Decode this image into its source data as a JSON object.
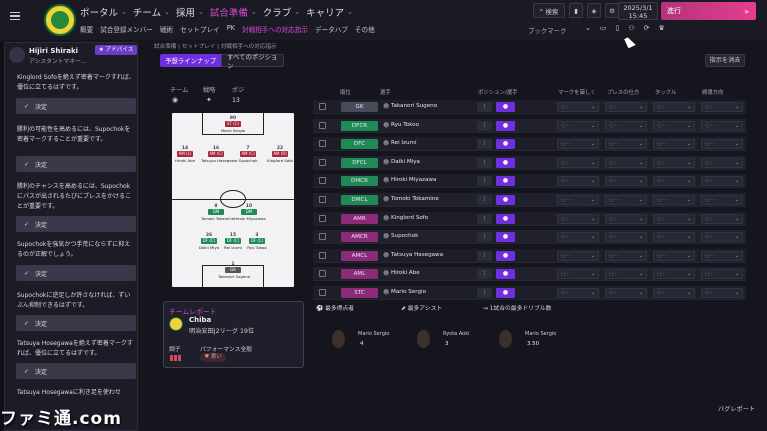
{
  "nav": {
    "main": [
      {
        "label": "ポータル"
      },
      {
        "label": "チーム"
      },
      {
        "label": "採用"
      },
      {
        "label": "試合準備"
      },
      {
        "label": "クラブ"
      },
      {
        "label": "キャリア"
      }
    ],
    "sub": [
      "概要",
      "試合登録メンバー",
      "戦術",
      "セットプレイ",
      "PK",
      "対戦相手への対応指示",
      "データハブ",
      "その他"
    ],
    "search_label": "検索",
    "date": "2025/3/1",
    "time": "15:45",
    "continue_label": "進行",
    "bookmark_label": "ブックマーク"
  },
  "assistant": {
    "name": "Hijiri Shiraki",
    "role": "アシスタントマネー...",
    "badge": "アドバイス",
    "advice": [
      "Kinglord Sofoを絶えず密着マークすれば、優位に立てるはずです。",
      "勝利の可能性を高めるには、Supochokを密着マークすることが重要です。",
      "勝利のチャンスを高めるには、Supochokにパスが出されるたびにプレスをかけることが重要です。",
      "Supochokを強気かつ手荒にならずに抑えるのが正解でしょう。",
      "Supochokに逆足しか許さなければ、ずいぶん抑制できるはずです。",
      "Tatsuya Hosegawaを絶えず密着マークすれば、優位に立てるはずです。",
      "Tatsuya Hosegawaに利き足を使わせ"
    ],
    "decide_label": "決定"
  },
  "breadcrumb": "試合準備 | セットプレイ | 対戦相手への対応指示",
  "filters": {
    "predicted": "予想ラインナップ",
    "all": "すべてのポジション"
  },
  "clear_label": "指示を消去",
  "pitch": {
    "team_label": "チーム",
    "formation_label": "戦略",
    "pos_label": "ポジ",
    "pos_value": "13",
    "players": [
      {
        "num": "90",
        "pos": "ST (C)",
        "name": "Mario Sergio",
        "color": "#a8263a"
      },
      {
        "num": "14",
        "pos": "AM (L)",
        "name": "Hiroki Abe",
        "color": "#a8263a"
      },
      {
        "num": "16",
        "pos": "AM (C)",
        "name": "Tatsuya Hasegawa",
        "color": "#a8263a"
      },
      {
        "num": "7",
        "pos": "AM (C)",
        "name": "Supochok",
        "color": "#a8263a"
      },
      {
        "num": "22",
        "pos": "AM (R)",
        "name": "Kinglord Sofo",
        "color": "#a8263a"
      },
      {
        "num": "8",
        "pos": "DM",
        "name": "Tomoki Tokamine",
        "color": "#1f8a56"
      },
      {
        "num": "10",
        "pos": "DM",
        "name": "Hiroki Miyazawa",
        "color": "#1f8a56"
      },
      {
        "num": "26",
        "pos": "DF (C)",
        "name": "Daiki Miya",
        "color": "#1f8a56"
      },
      {
        "num": "15",
        "pos": "DF (C)",
        "name": "Rei Izumi",
        "color": "#1f8a56"
      },
      {
        "num": "3",
        "pos": "DF (C)",
        "name": "Ryu Tokoo",
        "color": "#1f8a56"
      },
      {
        "num": "1",
        "pos": "GK",
        "name": "Takanori Sugeno",
        "color": "#555555"
      }
    ]
  },
  "table": {
    "headers": [
      "順位",
      "選手",
      "ポジション/選手",
      "マークを厳しく",
      "プレスの仕方",
      "タックル",
      "誘導方向"
    ],
    "rows": [
      {
        "pos": "GK",
        "color": "#4a4b5a",
        "name": "Takanori Sugeno"
      },
      {
        "pos": "DFCR",
        "color": "#1f8a56",
        "name": "Ryu Tokoo"
      },
      {
        "pos": "DFC",
        "color": "#1f8a56",
        "name": "Rei Izumi"
      },
      {
        "pos": "DFCL",
        "color": "#1f8a56",
        "name": "Daiki Miya"
      },
      {
        "pos": "DMCR",
        "color": "#1f8a56",
        "name": "Hiroki Miyazawa"
      },
      {
        "pos": "DMCL",
        "color": "#1f8a56",
        "name": "Tomoki Tokamine"
      },
      {
        "pos": "AMR",
        "color": "#8a2a78",
        "name": "Kinglord Sofo"
      },
      {
        "pos": "AMCR",
        "color": "#8a2a78",
        "name": "Supochok"
      },
      {
        "pos": "AMCL",
        "color": "#8a2a78",
        "name": "Tatsuya Hasegawa"
      },
      {
        "pos": "AML",
        "color": "#8a2a78",
        "name": "Hiroki Abe"
      },
      {
        "pos": "STC",
        "color": "#8a2a78",
        "name": "Mario Sergio"
      }
    ],
    "dash": "-"
  },
  "report": {
    "title": "チームレポート",
    "team": "Chiba",
    "league": "明治安田J2リーグ 19位",
    "form_label": "調子",
    "perf_label": "パフォーマンス全般",
    "perf_value": "悪い"
  },
  "stats": [
    {
      "label": "最多得点者",
      "player": "Mario Sergio",
      "value": "4"
    },
    {
      "label": "最多アシスト",
      "player": "Ryota Aoki",
      "value": "3"
    },
    {
      "label": "1試合の最多ドリブル数",
      "player": "Mario Sergio",
      "value": "3.50"
    }
  ],
  "watermark": "ファミ通.com",
  "bug_label": "バグレポート"
}
